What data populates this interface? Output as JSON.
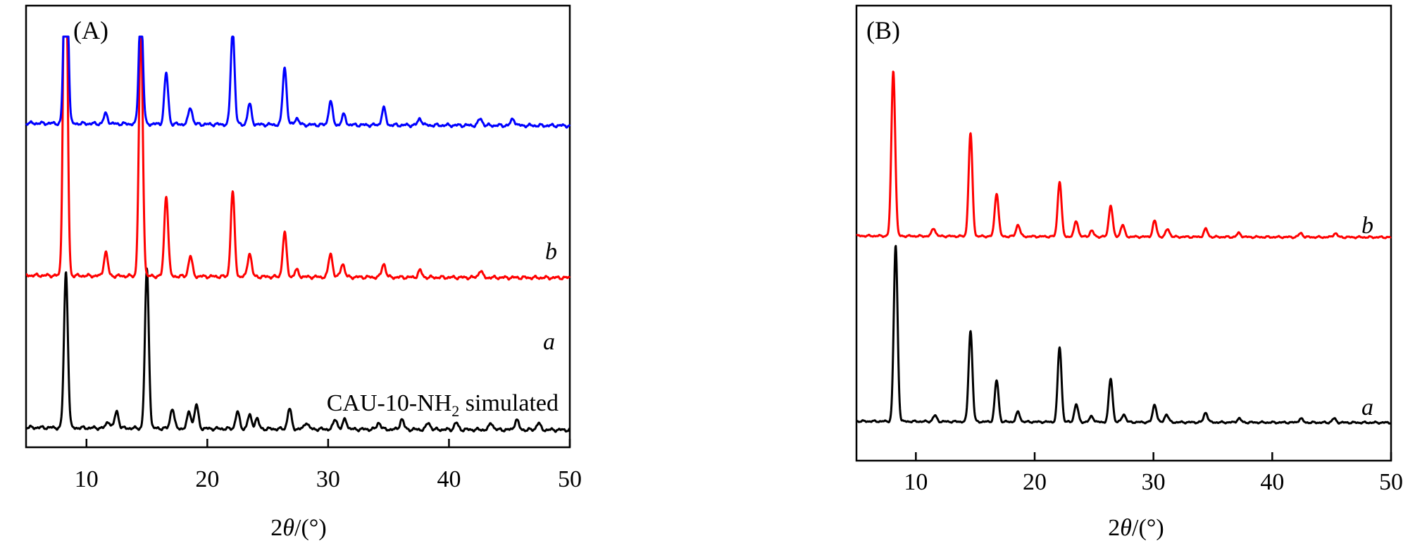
{
  "chart_data": [
    {
      "type": "line",
      "panel_label": "(A)",
      "xlabel_prefix": "2",
      "xlabel_theta": "θ",
      "xlabel_suffix": "/(°)",
      "ylabel": "",
      "xlim": [
        5,
        50
      ],
      "x_ticks": [
        10,
        20,
        30,
        40,
        50
      ],
      "y_ticks_shown": false,
      "grid": false,
      "annotation_parts": [
        "CAU-10-NH",
        "2",
        " simulated"
      ],
      "series": [
        {
          "label": "",
          "color": "#000000",
          "baseline": 0.0,
          "peaks": [
            [
              8.3,
              0.46
            ],
            [
              11.8,
              0.02
            ],
            [
              12.5,
              0.05
            ],
            [
              15.0,
              0.47
            ],
            [
              17.1,
              0.06
            ],
            [
              18.5,
              0.05
            ],
            [
              19.1,
              0.07
            ],
            [
              22.5,
              0.05
            ],
            [
              23.5,
              0.04
            ],
            [
              24.1,
              0.03
            ],
            [
              26.8,
              0.06
            ],
            [
              28.2,
              0.02
            ],
            [
              30.6,
              0.03
            ],
            [
              31.4,
              0.03
            ],
            [
              34.2,
              0.02
            ],
            [
              36.1,
              0.03
            ],
            [
              38.3,
              0.02
            ],
            [
              40.6,
              0.02
            ],
            [
              43.5,
              0.02
            ],
            [
              45.6,
              0.03
            ],
            [
              47.4,
              0.02
            ]
          ]
        },
        {
          "label": "a",
          "color": "#ff0000",
          "baseline": 0.45,
          "peaks": [
            [
              8.25,
              1.25
            ],
            [
              11.6,
              0.07
            ],
            [
              14.5,
              0.74
            ],
            [
              16.6,
              0.24
            ],
            [
              18.6,
              0.06
            ],
            [
              22.1,
              0.25
            ],
            [
              23.5,
              0.07
            ],
            [
              26.4,
              0.13
            ],
            [
              27.4,
              0.02
            ],
            [
              30.2,
              0.07
            ],
            [
              31.2,
              0.04
            ],
            [
              34.6,
              0.04
            ],
            [
              37.6,
              0.02
            ],
            [
              42.6,
              0.02
            ]
          ]
        },
        {
          "label": "b",
          "color": "#0000ff",
          "baseline": 0.9,
          "peaks": [
            [
              8.3,
              0.67
            ],
            [
              11.6,
              0.03
            ],
            [
              14.5,
              0.37
            ],
            [
              16.6,
              0.15
            ],
            [
              18.6,
              0.05
            ],
            [
              22.1,
              0.28
            ],
            [
              23.5,
              0.06
            ],
            [
              26.4,
              0.17
            ],
            [
              27.4,
              0.02
            ],
            [
              30.2,
              0.07
            ],
            [
              31.3,
              0.03
            ],
            [
              34.6,
              0.05
            ],
            [
              37.6,
              0.02
            ],
            [
              42.6,
              0.02
            ],
            [
              45.3,
              0.02
            ]
          ]
        }
      ]
    },
    {
      "type": "line",
      "panel_label": "(B)",
      "xlabel_prefix": "2",
      "xlabel_theta": "θ",
      "xlabel_suffix": "/(°)",
      "ylabel": "",
      "xlim": [
        5,
        50
      ],
      "x_ticks": [
        10,
        20,
        30,
        40,
        50
      ],
      "y_ticks_shown": false,
      "grid": false,
      "series": [
        {
          "label": "a",
          "color": "#000000",
          "baseline": 0.0,
          "peaks": [
            [
              8.3,
              0.89
            ],
            [
              11.6,
              0.03
            ],
            [
              14.6,
              0.46
            ],
            [
              16.8,
              0.21
            ],
            [
              18.6,
              0.05
            ],
            [
              22.1,
              0.38
            ],
            [
              23.5,
              0.09
            ],
            [
              24.8,
              0.03
            ],
            [
              26.4,
              0.22
            ],
            [
              27.5,
              0.04
            ],
            [
              30.1,
              0.09
            ],
            [
              31.1,
              0.04
            ],
            [
              34.4,
              0.05
            ],
            [
              37.2,
              0.02
            ],
            [
              42.4,
              0.02
            ],
            [
              45.2,
              0.02
            ]
          ]
        },
        {
          "label": "b",
          "color": "#ff0000",
          "baseline": 0.94,
          "peaks": [
            [
              8.1,
              0.84
            ],
            [
              11.5,
              0.04
            ],
            [
              14.6,
              0.52
            ],
            [
              16.8,
              0.22
            ],
            [
              18.6,
              0.06
            ],
            [
              22.1,
              0.28
            ],
            [
              23.5,
              0.08
            ],
            [
              24.8,
              0.03
            ],
            [
              26.4,
              0.16
            ],
            [
              27.4,
              0.06
            ],
            [
              30.1,
              0.08
            ],
            [
              31.2,
              0.04
            ],
            [
              34.4,
              0.04
            ],
            [
              37.2,
              0.02
            ],
            [
              42.4,
              0.02
            ],
            [
              45.3,
              0.02
            ]
          ]
        }
      ]
    }
  ]
}
